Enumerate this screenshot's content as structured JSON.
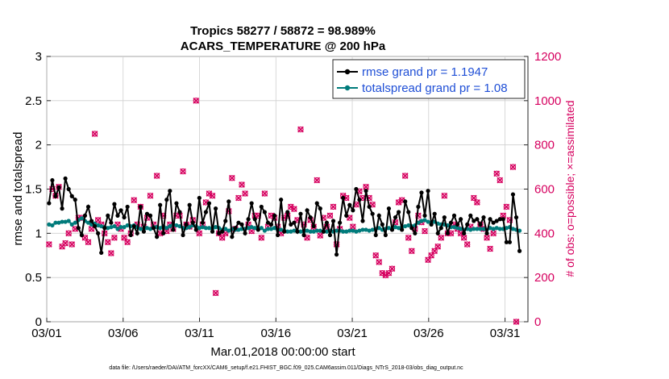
{
  "chart_data": {
    "type": "line",
    "title_line1": "Tropics 58277 / 58872 = 98.989%",
    "title_line2": "ACARS_TEMPERATURE @ 200 hPa",
    "xlabel": "Mar.01,2018 00:00:00 start",
    "ylabel_left": "rmse and totalspread",
    "ylabel_right": "# of obs: o=possible; ×=assimilated",
    "x_ticks": [
      "03/01",
      "03/06",
      "03/11",
      "03/16",
      "03/21",
      "03/26",
      "03/31"
    ],
    "xlim": [
      0,
      31.5
    ],
    "y_left_ticks": [
      "0",
      "0.5",
      "1",
      "1.5",
      "2",
      "2.5",
      "3"
    ],
    "y_left_lim": [
      0,
      3
    ],
    "y_right_ticks": [
      "0",
      "200",
      "400",
      "600",
      "800",
      "1000",
      "1200"
    ],
    "y_right_lim": [
      0,
      1200
    ],
    "legend": [
      "rmse grand pr = 1.1947",
      "totalspread grand pr = 1.08"
    ],
    "legend_position": "top-right",
    "footer": "data file: /Users/raeder/DAI/ATM_forcXX/CAM6_setup/f.e21.FHIST_BGC.f09_025.CAM6assim.011/Diags_NTrS_2018-03/obs_diag_output.nc",
    "colors": {
      "rmse": "#000000",
      "spread": "#007b7b",
      "obs": "#d6005f",
      "legend_text": "#1f4fd6"
    },
    "series": [
      {
        "name": "rmse",
        "values": [
          1.34,
          1.6,
          1.42,
          1.52,
          1.28,
          1.62,
          1.5,
          1.42,
          1.38,
          1.06,
          0.98,
          1.2,
          1.3,
          1.14,
          1.08,
          1.0,
          0.78,
          1.06,
          1.2,
          1.12,
          1.33,
          1.2,
          1.26,
          1.18,
          1.3,
          0.98,
          1.08,
          1.0,
          1.3,
          1.02,
          1.22,
          1.2,
          1.06,
          0.96,
          1.32,
          1.0,
          1.38,
          1.48,
          1.04,
          1.34,
          1.24,
          0.98,
          1.1,
          1.32,
          1.12,
          1.04,
          1.4,
          1.12,
          1.24,
          1.34,
          1.02,
          1.28,
          1.0,
          1.02,
          1.14,
          1.36,
          0.96,
          1.06,
          1.12,
          1.1,
          1.0,
          1.16,
          1.34,
          1.16,
          1.04,
          1.3,
          1.24,
          1.12,
          1.1,
          1.2,
          0.98,
          1.38,
          1.02,
          1.24,
          1.1,
          1.12,
          1.02,
          1.22,
          0.98,
          1.26,
          1.18,
          1.08,
          1.34,
          1.28,
          1.02,
          1.12,
          0.98,
          1.14,
          0.76,
          1.12,
          1.4,
          1.2,
          1.32,
          1.26,
          1.5,
          1.38,
          1.14,
          1.48,
          1.3,
          1.22,
          0.98,
          1.2,
          1.1,
          0.98,
          1.28,
          1.04,
          1.18,
          1.24,
          1.04,
          1.36,
          1.24,
          1.06,
          1.0,
          1.3,
          1.46,
          1.2,
          1.48,
          1.1,
          1.22,
          1.0,
          1.06,
          1.18,
          1.0,
          1.12,
          1.2,
          1.1,
          1.16,
          1.0,
          1.1,
          1.2,
          1.14,
          1.16,
          1.1,
          1.18,
          1.0,
          1.16,
          1.12,
          1.14,
          1.16,
          1.16,
          0.9,
          0.9,
          1.44,
          1.18,
          0.8
        ]
      },
      {
        "name": "totalspread",
        "values": [
          1.1,
          1.09,
          1.12,
          1.12,
          1.13,
          1.13,
          1.14,
          1.1,
          1.12,
          1.15,
          1.17,
          1.14,
          1.12,
          1.1,
          1.11,
          1.09,
          1.08,
          1.07,
          1.06,
          1.07,
          1.08,
          1.05,
          1.07,
          1.07,
          1.09,
          1.08,
          1.09,
          1.07,
          1.05,
          1.05,
          1.06,
          1.05,
          1.07,
          1.07,
          1.06,
          1.08,
          1.06,
          1.08,
          1.1,
          1.09,
          1.08,
          1.06,
          1.06,
          1.07,
          1.09,
          1.08,
          1.06,
          1.07,
          1.06,
          1.06,
          1.05,
          1.07,
          1.06,
          1.04,
          1.05,
          1.03,
          1.05,
          1.04,
          1.04,
          1.05,
          1.05,
          1.06,
          1.07,
          1.06,
          1.05,
          1.06,
          1.03,
          1.05,
          1.05,
          1.06,
          1.04,
          1.04,
          1.03,
          1.02,
          1.02,
          1.03,
          1.02,
          1.02,
          1.02,
          1.03,
          1.02,
          1.02,
          1.03,
          1.03,
          1.02,
          1.02,
          1.03,
          1.02,
          1.03,
          1.03,
          1.02,
          1.02,
          1.03,
          1.03,
          1.02,
          1.03,
          1.04,
          1.04,
          1.03,
          1.04,
          1.05,
          1.06,
          1.04,
          1.05,
          1.06,
          1.05,
          1.07,
          1.06,
          1.07,
          1.08,
          1.09,
          1.08,
          1.09,
          1.12,
          1.14,
          1.15,
          1.13,
          1.12,
          1.13,
          1.11,
          1.1,
          1.1,
          1.09,
          1.07,
          1.07,
          1.06,
          1.05,
          1.04,
          1.05,
          1.04,
          1.05,
          1.05,
          1.05,
          1.05,
          1.04,
          1.06,
          1.05,
          1.06,
          1.05,
          1.05,
          1.06,
          1.07,
          1.05,
          1.04,
          1.03
        ]
      },
      {
        "name": "obs_count",
        "values": [
          350,
          600,
          570,
          610,
          340,
          355,
          400,
          350,
          420,
          470,
          470,
          380,
          360,
          420,
          850,
          460,
          440,
          400,
          360,
          310,
          380,
          440,
          420,
          380,
          360,
          400,
          550,
          440,
          520,
          430,
          470,
          570,
          440,
          660,
          400,
          480,
          410,
          440,
          420,
          480,
          480,
          680,
          440,
          430,
          460,
          1000,
          400,
          440,
          540,
          580,
          570,
          130,
          400,
          380,
          400,
          500,
          650,
          420,
          560,
          620,
          580,
          440,
          410,
          480,
          480,
          380,
          580,
          430,
          480,
          470,
          430,
          400,
          470,
          480,
          520,
          510,
          460,
          870,
          440,
          380,
          460,
          430,
          640,
          390,
          470,
          430,
          480,
          520,
          350,
          420,
          570,
          560,
          470,
          430,
          530,
          590,
          560,
          610,
          560,
          530,
          300,
          270,
          220,
          210,
          220,
          240,
          450,
          540,
          550,
          660,
          380,
          320,
          420,
          480,
          450,
          410,
          280,
          300,
          320,
          340,
          380,
          570,
          400,
          400,
          440,
          420,
          400,
          380,
          350,
          430,
          560,
          540,
          440,
          420,
          380,
          330,
          400,
          670,
          640,
          480,
          520,
          460,
          700,
          0
        ]
      }
    ]
  }
}
